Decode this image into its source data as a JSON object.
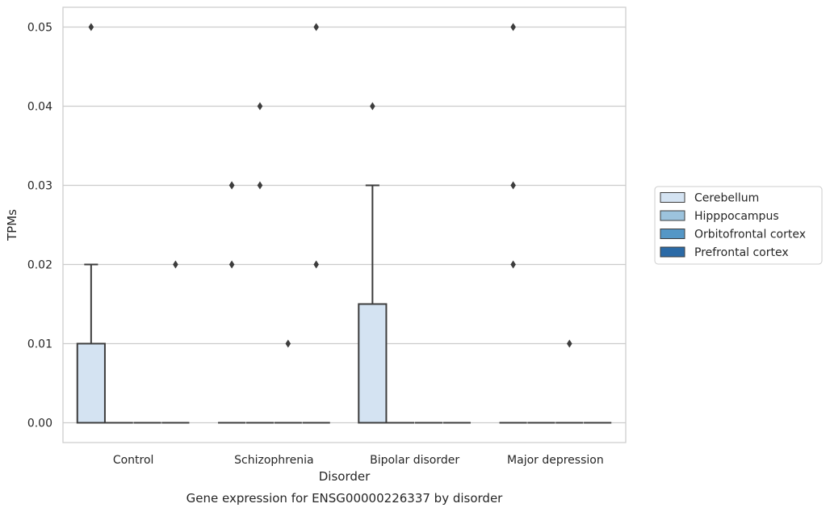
{
  "chart_data": {
    "type": "box",
    "xlabel": "Disorder",
    "ylabel": "TPMs",
    "caption": "Gene expression for ENSG00000226337 by disorder",
    "categories": [
      "Control",
      "Schizophrenia",
      "Bipolar disorder",
      "Major depression"
    ],
    "ylim": [
      -0.0025,
      0.0525
    ],
    "yticks": [
      0.0,
      0.01,
      0.02,
      0.03,
      0.04,
      0.05
    ],
    "ytick_labels": [
      "0.00",
      "0.01",
      "0.02",
      "0.03",
      "0.04",
      "0.05"
    ],
    "grid": true,
    "legend_position": "right",
    "series": [
      {
        "name": "Cerebellum",
        "color": "#d4e3f2",
        "boxes": [
          {
            "q1": 0.0,
            "median": 0.0,
            "q3": 0.01,
            "whisker_low": 0.0,
            "whisker_high": 0.02,
            "outliers": [
              0.05
            ]
          },
          {
            "q1": 0.0,
            "median": 0.0,
            "q3": 0.0,
            "whisker_low": 0.0,
            "whisker_high": 0.0,
            "outliers": [
              0.02,
              0.03,
              0.03
            ]
          },
          {
            "q1": 0.0,
            "median": 0.0,
            "q3": 0.015,
            "whisker_low": 0.0,
            "whisker_high": 0.03,
            "outliers": [
              0.04
            ]
          },
          {
            "q1": 0.0,
            "median": 0.0,
            "q3": 0.0,
            "whisker_low": 0.0,
            "whisker_high": 0.0,
            "outliers": [
              0.02,
              0.03,
              0.05
            ]
          }
        ]
      },
      {
        "name": "Hipppocampus",
        "color": "#9cc3dd",
        "boxes": [
          {
            "q1": 0.0,
            "median": 0.0,
            "q3": 0.0,
            "whisker_low": 0.0,
            "whisker_high": 0.0,
            "outliers": []
          },
          {
            "q1": 0.0,
            "median": 0.0,
            "q3": 0.0,
            "whisker_low": 0.0,
            "whisker_high": 0.0,
            "outliers": [
              0.03,
              0.04
            ]
          },
          {
            "q1": 0.0,
            "median": 0.0,
            "q3": 0.0,
            "whisker_low": 0.0,
            "whisker_high": 0.0,
            "outliers": []
          },
          {
            "q1": 0.0,
            "median": 0.0,
            "q3": 0.0,
            "whisker_low": 0.0,
            "whisker_high": 0.0,
            "outliers": []
          }
        ]
      },
      {
        "name": "Orbitofrontal cortex",
        "color": "#5597c6",
        "boxes": [
          {
            "q1": 0.0,
            "median": 0.0,
            "q3": 0.0,
            "whisker_low": 0.0,
            "whisker_high": 0.0,
            "outliers": []
          },
          {
            "q1": 0.0,
            "median": 0.0,
            "q3": 0.0,
            "whisker_low": 0.0,
            "whisker_high": 0.0,
            "outliers": [
              0.01
            ]
          },
          {
            "q1": 0.0,
            "median": 0.0,
            "q3": 0.0,
            "whisker_low": 0.0,
            "whisker_high": 0.0,
            "outliers": []
          },
          {
            "q1": 0.0,
            "median": 0.0,
            "q3": 0.0,
            "whisker_low": 0.0,
            "whisker_high": 0.0,
            "outliers": [
              0.01
            ]
          }
        ]
      },
      {
        "name": "Prefrontal cortex",
        "color": "#2b6aa6",
        "boxes": [
          {
            "q1": 0.0,
            "median": 0.0,
            "q3": 0.0,
            "whisker_low": 0.0,
            "whisker_high": 0.0,
            "outliers": [
              0.02
            ]
          },
          {
            "q1": 0.0,
            "median": 0.0,
            "q3": 0.0,
            "whisker_low": 0.0,
            "whisker_high": 0.0,
            "outliers": [
              0.02,
              0.05
            ]
          },
          {
            "q1": 0.0,
            "median": 0.0,
            "q3": 0.0,
            "whisker_low": 0.0,
            "whisker_high": 0.0,
            "outliers": []
          },
          {
            "q1": 0.0,
            "median": 0.0,
            "q3": 0.0,
            "whisker_low": 0.0,
            "whisker_high": 0.0,
            "outliers": []
          }
        ]
      }
    ]
  }
}
